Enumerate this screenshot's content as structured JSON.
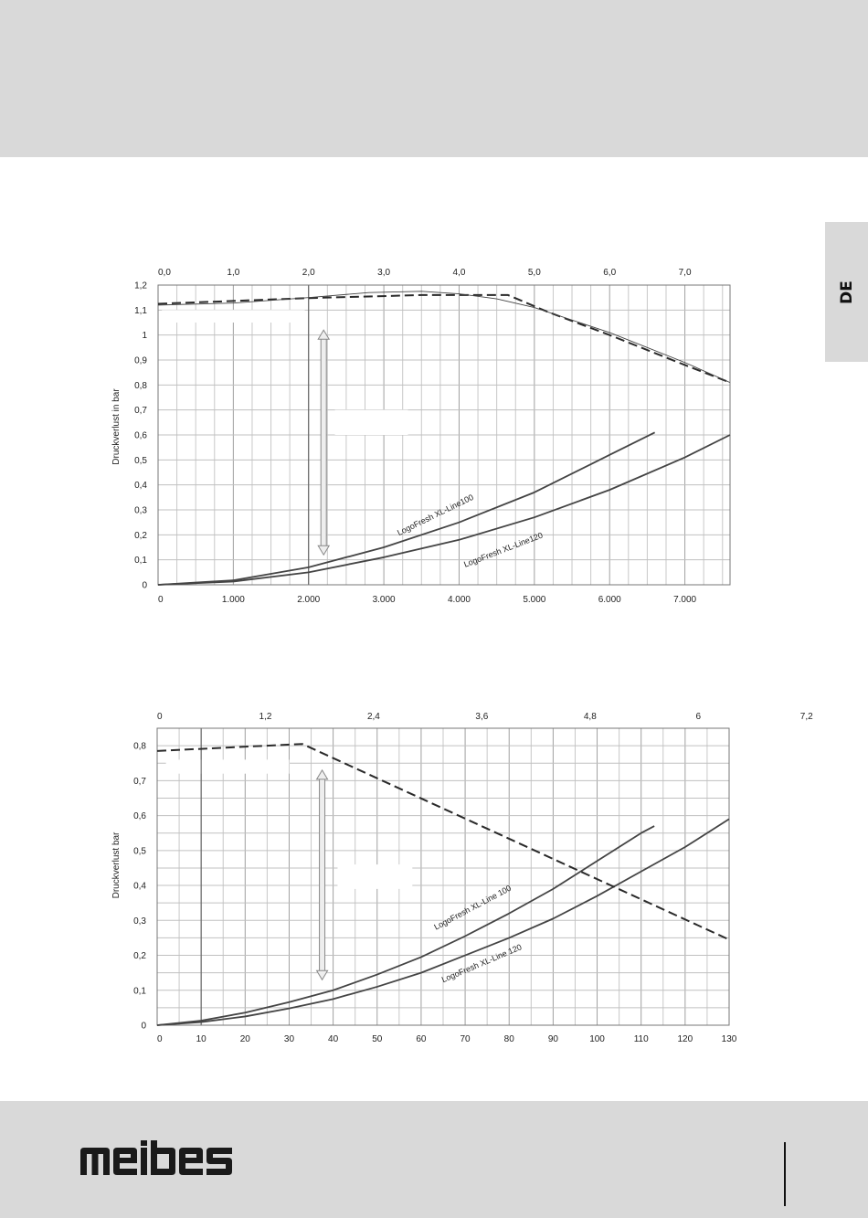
{
  "page": {
    "language_tab": "DE",
    "brand": "meibes"
  },
  "chart_data": [
    {
      "type": "line",
      "ylabel": "Druckverlust in bar",
      "ylim": [
        0,
        1.2
      ],
      "yticks": [
        "0",
        "0,1",
        "0,2",
        "0,3",
        "0,4",
        "0,5",
        "0,6",
        "0,7",
        "0,8",
        "0,9",
        "1",
        "1,1",
        "1,2"
      ],
      "xlim": [
        0,
        7600
      ],
      "xticks_bottom": [
        "0",
        "1.000",
        "2.000",
        "3.000",
        "4.000",
        "5.000",
        "6.000",
        "7.000"
      ],
      "xticks_top": [
        "0,0",
        "1,0",
        "2,0",
        "3,0",
        "4,0",
        "5,0",
        "6,0",
        "7,0"
      ],
      "grid": true,
      "series": [
        {
          "name": "LogoFresh XL-Line100",
          "style": "solid",
          "x": [
            0,
            1000,
            2000,
            3000,
            4000,
            5000,
            6000,
            6600
          ],
          "y": [
            0,
            0.018,
            0.07,
            0.15,
            0.25,
            0.37,
            0.52,
            0.61
          ]
        },
        {
          "name": "LogoFresh XL-Line120",
          "style": "solid",
          "x": [
            0,
            1000,
            2000,
            3000,
            4000,
            5000,
            6000,
            7000,
            7600
          ],
          "y": [
            0,
            0.013,
            0.05,
            0.11,
            0.18,
            0.27,
            0.38,
            0.51,
            0.6
          ]
        },
        {
          "name": "",
          "style": "dashed",
          "x": [
            0,
            2000,
            3500,
            4650,
            5200,
            6000,
            7000,
            7600
          ],
          "y": [
            1.125,
            1.148,
            1.16,
            1.16,
            1.09,
            1.0,
            0.88,
            0.81
          ]
        },
        {
          "name": "",
          "style": "thin",
          "x": [
            0,
            1000,
            2000,
            2800,
            3500,
            4000,
            4500,
            5000,
            6000,
            7000,
            7600
          ],
          "y": [
            1.12,
            1.128,
            1.15,
            1.17,
            1.175,
            1.165,
            1.145,
            1.11,
            1.01,
            0.89,
            0.81
          ]
        }
      ]
    },
    {
      "type": "line",
      "ylabel": "Druckverlust bar",
      "ylim": [
        0,
        0.85
      ],
      "yticks": [
        "0",
        "0,1",
        "0,2",
        "0,3",
        "0,4",
        "0,5",
        "0,6",
        "0,7",
        "0,8"
      ],
      "xlim": [
        0,
        130
      ],
      "xticks_bottom": [
        "0",
        "10",
        "20",
        "30",
        "40",
        "50",
        "60",
        "70",
        "80",
        "90",
        "100",
        "110",
        "120",
        "130"
      ],
      "xticks_top": [
        "0",
        "1,2",
        "2,4",
        "3,6",
        "4,8",
        "6",
        "7,2"
      ],
      "grid": true,
      "series": [
        {
          "name": "LogoFresh XL-Line 100",
          "style": "solid",
          "x": [
            0,
            10,
            20,
            30,
            40,
            50,
            60,
            70,
            80,
            90,
            100,
            110,
            113
          ],
          "y": [
            0,
            0.013,
            0.036,
            0.066,
            0.1,
            0.145,
            0.195,
            0.255,
            0.32,
            0.39,
            0.47,
            0.55,
            0.57
          ]
        },
        {
          "name": "LogoFresh XL-Line 120",
          "style": "solid",
          "x": [
            0,
            10,
            20,
            30,
            40,
            50,
            60,
            70,
            80,
            90,
            100,
            110,
            120,
            130
          ],
          "y": [
            0,
            0.009,
            0.025,
            0.048,
            0.075,
            0.11,
            0.15,
            0.2,
            0.25,
            0.305,
            0.37,
            0.44,
            0.51,
            0.59
          ]
        },
        {
          "name": "",
          "style": "dashed",
          "x": [
            0,
            33,
            130
          ],
          "y": [
            0.785,
            0.805,
            0.245
          ]
        }
      ]
    }
  ]
}
